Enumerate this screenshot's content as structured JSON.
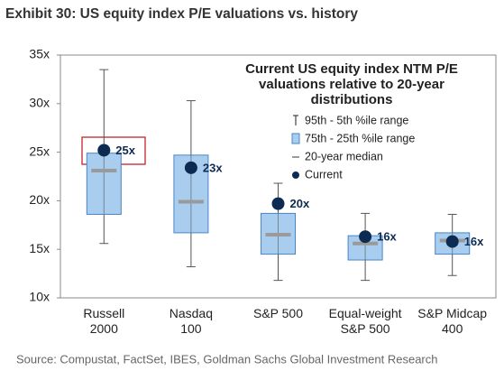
{
  "chart_data": {
    "type": "box",
    "title": "Exhibit 30: US equity index P/E valuations vs. history",
    "legend_title": "Current US equity index NTM P/E\nvaluations relative to 20-year\ndistributions",
    "legend": {
      "whisker": "95th - 5th %ile range",
      "box": "75th - 25th %ile range",
      "median": "20-year median",
      "current": "Current"
    },
    "source": "Source: Compustat, FactSet, IBES, Goldman Sachs Global Investment Research",
    "categories": [
      "Russell\n2000",
      "Nasdaq\n100",
      "S&P 500",
      "Equal-weight\nS&P 500",
      "S&P Midcap\n400"
    ],
    "whisker_high": [
      33.5,
      30.3,
      21.8,
      18.7,
      18.6
    ],
    "whisker_low": [
      15.6,
      13.2,
      11.8,
      11.8,
      12.3
    ],
    "box_high": [
      24.9,
      24.7,
      18.7,
      16.4,
      16.7
    ],
    "box_low": [
      18.6,
      16.7,
      14.5,
      13.9,
      14.5
    ],
    "median": [
      23.1,
      19.9,
      16.5,
      15.6,
      15.9
    ],
    "current": [
      25.2,
      23.4,
      19.7,
      16.3,
      15.8
    ],
    "current_labels": [
      "25x",
      "23x",
      "20x",
      "16x",
      "16x"
    ],
    "ylim": [
      10,
      35
    ],
    "yticks": [
      {
        "value": 10,
        "label": "10x"
      },
      {
        "value": 15,
        "label": "15x"
      },
      {
        "value": 20,
        "label": "20x"
      },
      {
        "value": 25,
        "label": "25x"
      },
      {
        "value": 30,
        "label": "30x"
      },
      {
        "value": 35,
        "label": "35x"
      }
    ],
    "box_color": "#a9cdee",
    "box_edge_color": "#4a86c5",
    "whisker_color": "#555555",
    "median_color": "#9a9a9a",
    "current_color": "#0d2b52"
  }
}
